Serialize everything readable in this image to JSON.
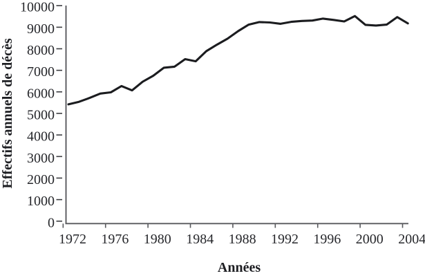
{
  "figure": {
    "background": "#ffffff",
    "line_color": "#1b1c1f",
    "axis_color": "#58595d",
    "ytick_dash_color": "#3c3d41",
    "text_color": "#26272b"
  },
  "chart_data": {
    "type": "line",
    "title": "",
    "xlabel": "Années",
    "ylabel": "Effectifs annuels de décès",
    "x": [
      1972,
      1973,
      1974,
      1975,
      1976,
      1977,
      1978,
      1979,
      1980,
      1981,
      1982,
      1983,
      1984,
      1985,
      1986,
      1987,
      1988,
      1989,
      1990,
      1991,
      1992,
      1993,
      1994,
      1995,
      1996,
      1997,
      1998,
      1999,
      2000,
      2001,
      2002,
      2003,
      2004
    ],
    "values": [
      5500,
      5620,
      5800,
      6000,
      6060,
      6350,
      6150,
      6550,
      6830,
      7200,
      7250,
      7600,
      7500,
      7970,
      8270,
      8550,
      8900,
      9200,
      9320,
      9300,
      9240,
      9330,
      9370,
      9390,
      9480,
      9420,
      9350,
      9600,
      9190,
      9160,
      9200,
      9550,
      9260
    ],
    "xlim": [
      1972,
      2004
    ],
    "ylim": [
      0,
      10000
    ],
    "xtick_labels": [
      "1972",
      "1976",
      "1980",
      "1984",
      "1988",
      "1992",
      "1996",
      "2000",
      "2004"
    ],
    "ytick_values": [
      0,
      1000,
      2000,
      3000,
      4000,
      5000,
      6000,
      7000,
      8000,
      9000,
      10000
    ],
    "ytick_labels": [
      "0",
      "1000",
      "2000",
      "3000",
      "4000",
      "5000",
      "6000",
      "7000",
      "8000",
      "9000",
      "10000"
    ],
    "grid": false,
    "legend": "none"
  }
}
